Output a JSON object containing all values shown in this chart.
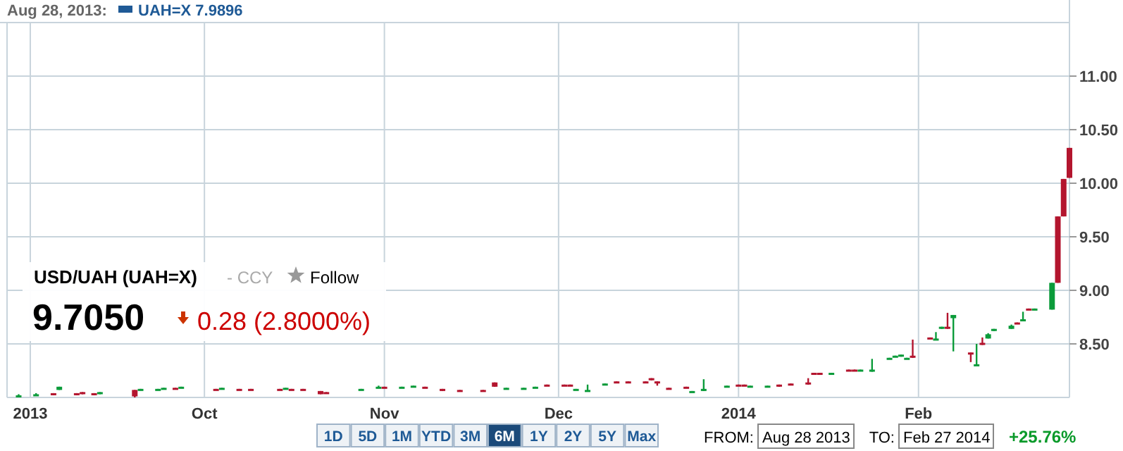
{
  "chart_data": {
    "type": "candlestick",
    "title": "USD/UAH (UAH=X)",
    "annotations": [
      "Aug 28, 2013:",
      "UAH=X 7.9896",
      "- CCY",
      "Follow",
      "9.7050",
      "0.28",
      "(2.8000%)",
      "1D",
      "5D",
      "1M",
      "YTD",
      "3M",
      "6M",
      "1Y",
      "2Y",
      "5Y",
      "Max",
      "FROM:",
      "Aug 28 2013",
      "TO:",
      "Feb 27 2014",
      "+25.76%"
    ],
    "xlim": [
      "2013-08-28",
      "2014-02-27"
    ],
    "xticks": [
      {
        "value": "2013-09-01",
        "label": "2013"
      },
      {
        "value": "2013-10-01",
        "label": "Oct"
      },
      {
        "value": "2013-11-01",
        "label": "Nov"
      },
      {
        "value": "2013-12-01",
        "label": "Dec"
      },
      {
        "value": "2014-01-01",
        "label": "2014"
      },
      {
        "value": "2014-02-01",
        "label": "Feb"
      }
    ],
    "ylim": [
      8.0,
      11.5
    ],
    "yticks": [
      {
        "value": 8.5,
        "label": "8.50"
      },
      {
        "value": 9,
        "label": "9.00"
      },
      {
        "value": 9.5,
        "label": "9.50"
      },
      {
        "value": 10,
        "label": "10.00"
      },
      {
        "value": 10.5,
        "label": "10.50"
      },
      {
        "value": 11,
        "label": "11.00"
      }
    ],
    "grid": true,
    "x": [
      "2013-08-30",
      "2013-09-02",
      "2013-09-05",
      "2013-09-06",
      "2013-09-09",
      "2013-09-10",
      "2013-09-12",
      "2013-09-13",
      "2013-09-19",
      "2013-09-20",
      "2013-09-23",
      "2013-09-24",
      "2013-09-26",
      "2013-09-27",
      "2013-10-03",
      "2013-10-04",
      "2013-10-07",
      "2013-10-09",
      "2013-10-14",
      "2013-10-15",
      "2013-10-16",
      "2013-10-18",
      "2013-10-21",
      "2013-10-22",
      "2013-10-28",
      "2013-10-31",
      "2013-11-01",
      "2013-11-04",
      "2013-11-06",
      "2013-11-08",
      "2013-11-11",
      "2013-11-14",
      "2013-11-18",
      "2013-11-20",
      "2013-11-22",
      "2013-11-25",
      "2013-11-27",
      "2013-11-29",
      "2013-12-02",
      "2013-12-03",
      "2013-12-04",
      "2013-12-06",
      "2013-12-09",
      "2013-12-11",
      "2013-12-13",
      "2013-12-16",
      "2013-12-17",
      "2013-12-18",
      "2013-12-20",
      "2013-12-23",
      "2013-12-24",
      "2013-12-26",
      "2013-12-30",
      "2014-01-01",
      "2014-01-02",
      "2014-01-03",
      "2014-01-06",
      "2014-01-08",
      "2014-01-10",
      "2014-01-13",
      "2014-01-14",
      "2014-01-15",
      "2014-01-17",
      "2014-01-20",
      "2014-01-21",
      "2014-01-22",
      "2014-01-24",
      "2014-01-27",
      "2014-01-28",
      "2014-01-29",
      "2014-01-30",
      "2014-01-31",
      "2014-02-03",
      "2014-02-04",
      "2014-02-05",
      "2014-02-06",
      "2014-02-07",
      "2014-02-10",
      "2014-02-11",
      "2014-02-12",
      "2014-02-13",
      "2014-02-14",
      "2014-02-17",
      "2014-02-18",
      "2014-02-19",
      "2014-02-20",
      "2014-02-21",
      "2014-02-24",
      "2014-02-25",
      "2014-02-26",
      "2014-02-27"
    ],
    "ohlc": [
      [
        8.01,
        8.03,
        8.01,
        8.02
      ],
      [
        8.02,
        8.04,
        8.02,
        8.03
      ],
      [
        8.04,
        8.04,
        8.02,
        8.03
      ],
      [
        8.07,
        8.1,
        8.07,
        8.1
      ],
      [
        8.04,
        8.04,
        8.02,
        8.03
      ],
      [
        8.05,
        8.05,
        8.03,
        8.03
      ],
      [
        8.04,
        8.04,
        8.02,
        8.03
      ],
      [
        8.03,
        8.05,
        8.03,
        8.05
      ],
      [
        8.07,
        8.07,
        8.0,
        8.01
      ],
      [
        8.07,
        8.08,
        8.07,
        8.08
      ],
      [
        8.07,
        8.08,
        8.07,
        8.08
      ],
      [
        8.08,
        8.09,
        8.08,
        8.09
      ],
      [
        8.09,
        8.09,
        8.08,
        8.08
      ],
      [
        8.09,
        8.1,
        8.09,
        8.1
      ],
      [
        8.08,
        8.08,
        8.07,
        8.07
      ],
      [
        8.08,
        8.09,
        8.08,
        8.09
      ],
      [
        8.08,
        8.08,
        8.07,
        8.07
      ],
      [
        8.08,
        8.08,
        8.07,
        8.07
      ],
      [
        8.08,
        8.08,
        8.07,
        8.07
      ],
      [
        8.08,
        8.09,
        8.08,
        8.09
      ],
      [
        8.08,
        8.08,
        8.07,
        8.07
      ],
      [
        8.08,
        8.08,
        8.07,
        8.07
      ],
      [
        8.06,
        8.06,
        8.03,
        8.03
      ],
      [
        8.05,
        8.05,
        8.04,
        8.04
      ],
      [
        8.07,
        8.08,
        8.07,
        8.08
      ],
      [
        8.09,
        8.11,
        8.09,
        8.1
      ],
      [
        8.1,
        8.1,
        8.09,
        8.09
      ],
      [
        8.09,
        8.1,
        8.09,
        8.1
      ],
      [
        8.1,
        8.11,
        8.1,
        8.11
      ],
      [
        8.1,
        8.1,
        8.09,
        8.09
      ],
      [
        8.08,
        8.08,
        8.06,
        8.06
      ],
      [
        8.07,
        8.07,
        8.06,
        8.06
      ],
      [
        8.07,
        8.07,
        8.06,
        8.06
      ],
      [
        8.14,
        8.14,
        8.1,
        8.1
      ],
      [
        8.08,
        8.09,
        8.08,
        8.09
      ],
      [
        8.08,
        8.09,
        8.08,
        8.09
      ],
      [
        8.09,
        8.1,
        8.09,
        8.1
      ],
      [
        8.12,
        8.12,
        8.11,
        8.11
      ],
      [
        8.12,
        8.12,
        8.11,
        8.11
      ],
      [
        8.12,
        8.12,
        8.11,
        8.11
      ],
      [
        8.07,
        8.08,
        8.07,
        8.08
      ],
      [
        8.06,
        8.12,
        8.06,
        8.07
      ],
      [
        8.12,
        8.13,
        8.12,
        8.13
      ],
      [
        8.15,
        8.15,
        8.14,
        8.14
      ],
      [
        8.15,
        8.15,
        8.14,
        8.14
      ],
      [
        8.15,
        8.15,
        8.14,
        8.14
      ],
      [
        8.18,
        8.18,
        8.16,
        8.16
      ],
      [
        8.15,
        8.15,
        8.11,
        8.14
      ],
      [
        8.09,
        8.09,
        8.08,
        8.08
      ],
      [
        8.1,
        8.1,
        8.09,
        8.09
      ],
      [
        8.05,
        8.06,
        8.05,
        8.06
      ],
      [
        8.06,
        8.17,
        8.06,
        8.08
      ],
      [
        8.1,
        8.11,
        8.1,
        8.11
      ],
      [
        8.12,
        8.12,
        8.11,
        8.11
      ],
      [
        8.12,
        8.12,
        8.11,
        8.11
      ],
      [
        8.1,
        8.11,
        8.1,
        8.11
      ],
      [
        8.1,
        8.11,
        8.1,
        8.11
      ],
      [
        8.12,
        8.12,
        8.1,
        8.11
      ],
      [
        8.13,
        8.13,
        8.12,
        8.12
      ],
      [
        8.14,
        8.18,
        8.12,
        8.13
      ],
      [
        8.23,
        8.23,
        8.22,
        8.22
      ],
      [
        8.23,
        8.23,
        8.22,
        8.22
      ],
      [
        8.22,
        8.23,
        8.22,
        8.23
      ],
      [
        8.26,
        8.26,
        8.25,
        8.25
      ],
      [
        8.26,
        8.26,
        8.25,
        8.25
      ],
      [
        8.25,
        8.26,
        8.25,
        8.26
      ],
      [
        8.24,
        8.36,
        8.24,
        8.26
      ],
      [
        8.36,
        8.37,
        8.36,
        8.37
      ],
      [
        8.38,
        8.39,
        8.38,
        8.39
      ],
      [
        8.38,
        8.4,
        8.38,
        8.4
      ],
      [
        8.36,
        8.37,
        8.36,
        8.37
      ],
      [
        8.39,
        8.54,
        8.37,
        8.37
      ],
      [
        8.56,
        8.56,
        8.55,
        8.55
      ],
      [
        8.54,
        8.61,
        8.54,
        8.55
      ],
      [
        8.64,
        8.66,
        8.64,
        8.66
      ],
      [
        8.66,
        8.79,
        8.64,
        8.65
      ],
      [
        8.74,
        8.77,
        8.43,
        8.77
      ],
      [
        8.42,
        8.42,
        8.33,
        8.4
      ],
      [
        8.3,
        8.5,
        8.3,
        8.31
      ],
      [
        8.51,
        8.56,
        8.49,
        8.49
      ],
      [
        8.55,
        8.6,
        8.55,
        8.59
      ],
      [
        8.62,
        8.64,
        8.62,
        8.64
      ],
      [
        8.64,
        8.68,
        8.64,
        8.67
      ],
      [
        8.7,
        8.7,
        8.69,
        8.69
      ],
      [
        8.72,
        8.8,
        8.72,
        8.73
      ],
      [
        8.83,
        8.83,
        8.82,
        8.82
      ],
      [
        8.82,
        8.83,
        8.82,
        8.83
      ],
      [
        8.82,
        9.07,
        8.82,
        9.07
      ],
      [
        9.69,
        9.69,
        9.07,
        9.07
      ],
      [
        10.04,
        10.04,
        9.69,
        9.69
      ],
      [
        10.33,
        10.33,
        10.05,
        10.05
      ]
    ]
  }
}
